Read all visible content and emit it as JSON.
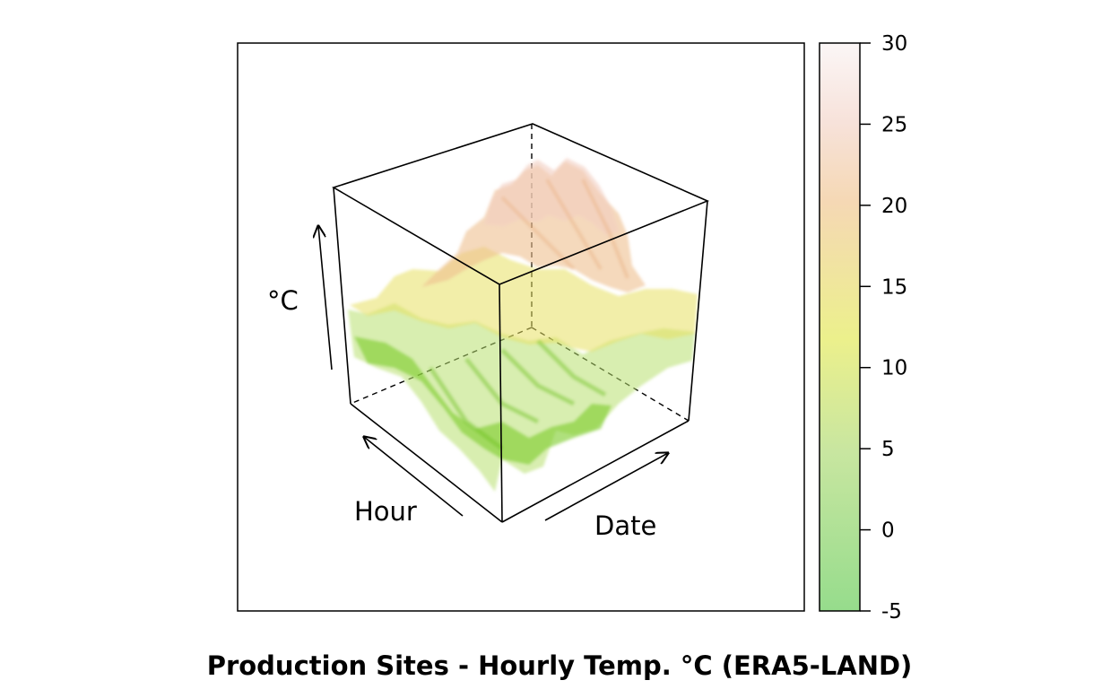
{
  "chart_data": {
    "type": "surface3d",
    "title": "Production Sites - Hourly Temp. °C (ERA5-LAND)",
    "axes": {
      "x_label": "Date",
      "y_label": "Hour",
      "z_label": "°C"
    },
    "z_range": [
      -5,
      30
    ],
    "colorbar": {
      "range": [
        -5,
        30
      ],
      "ticks": [
        30,
        25,
        20,
        15,
        10,
        5,
        0,
        -5
      ],
      "tick_labels": [
        "30",
        "25",
        "20",
        "15",
        "10",
        "5",
        "0",
        "-5"
      ],
      "colors": [
        {
          "value": -5,
          "color": "#96dc8c"
        },
        {
          "value": 5,
          "color": "#c8e6a0"
        },
        {
          "value": 12,
          "color": "#ecf08c"
        },
        {
          "value": 20,
          "color": "#f5d8b4"
        },
        {
          "value": 25,
          "color": "#f7e2da"
        },
        {
          "value": 30,
          "color": "#fbf6f6"
        }
      ]
    },
    "grid": false,
    "legend": "colorbar-right"
  }
}
